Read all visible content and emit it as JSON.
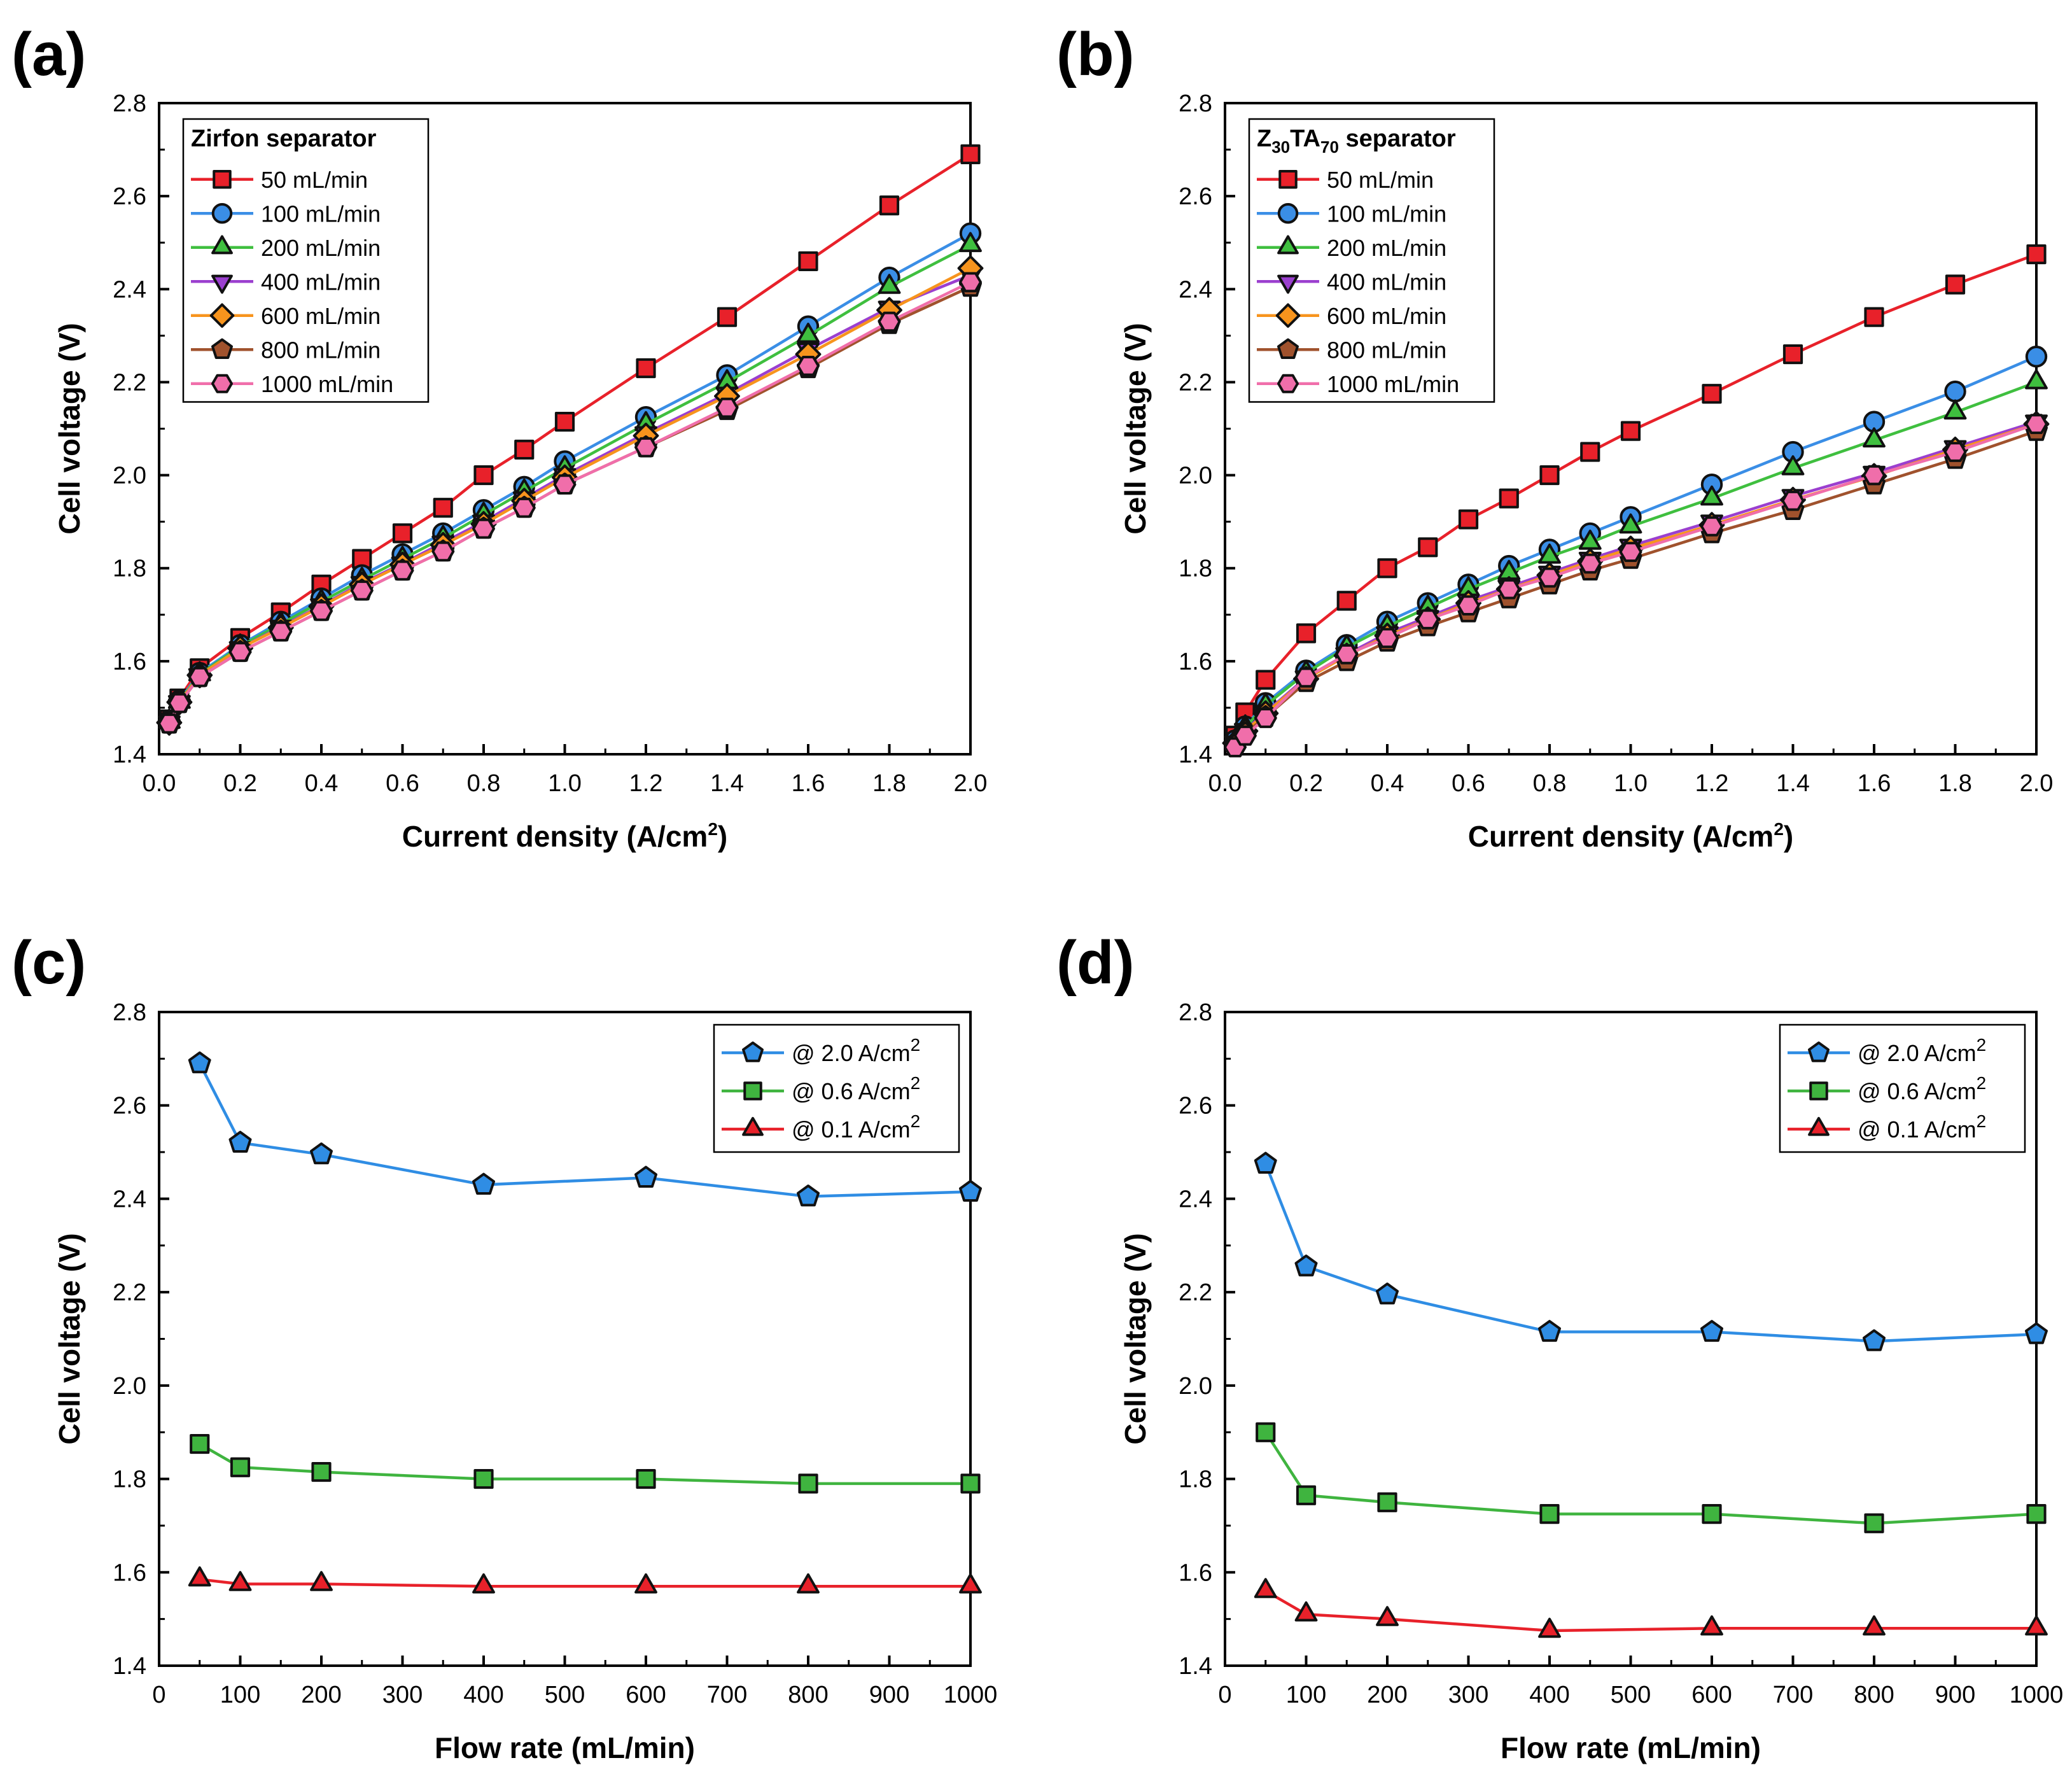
{
  "chart_data": [
    {
      "panel": "(a)",
      "type": "line",
      "xlabel": "Current density (A/cm",
      "xlabel_sup": "2",
      "xlabel_end": ")",
      "ylabel": "Cell voltage (V)",
      "xlim": [
        0,
        2.0
      ],
      "ylim": [
        1.4,
        2.8
      ],
      "xticks": [
        0.0,
        0.2,
        0.4,
        0.6,
        0.8,
        1.0,
        1.2,
        1.4,
        1.6,
        1.8,
        2.0
      ],
      "xtick_labels": [
        "0.0",
        "0.2",
        "0.4",
        "0.6",
        "0.8",
        "1.0",
        "1.2",
        "1.4",
        "1.6",
        "1.8",
        "2.0"
      ],
      "yticks": [
        1.4,
        1.6,
        1.8,
        2.0,
        2.2,
        2.4,
        2.6,
        2.8
      ],
      "ytick_labels": [
        "1.4",
        "1.6",
        "1.8",
        "2.0",
        "2.2",
        "2.4",
        "2.6",
        "2.8"
      ],
      "legend_title": "Zirfon separator",
      "legend_position": "top-left",
      "x": [
        0.025,
        0.05,
        0.1,
        0.2,
        0.3,
        0.4,
        0.5,
        0.6,
        0.7,
        0.8,
        0.9,
        1.0,
        1.2,
        1.4,
        1.6,
        1.8,
        2.0
      ],
      "series": [
        {
          "name": "50 mL/min",
          "color": "#e8212a",
          "marker": "square",
          "values": [
            1.475,
            1.52,
            1.585,
            1.65,
            1.705,
            1.765,
            1.82,
            1.875,
            1.93,
            2.0,
            2.055,
            2.115,
            2.23,
            2.34,
            2.46,
            2.58,
            2.69
          ]
        },
        {
          "name": "100 mL/min",
          "color": "#3a8ee6",
          "marker": "circle",
          "values": [
            1.472,
            1.515,
            1.575,
            1.635,
            1.685,
            1.735,
            1.785,
            1.83,
            1.875,
            1.925,
            1.975,
            2.03,
            2.125,
            2.215,
            2.32,
            2.425,
            2.52
          ]
        },
        {
          "name": "200 mL/min",
          "color": "#3fbf3f",
          "marker": "triangle-up",
          "values": [
            1.47,
            1.513,
            1.572,
            1.632,
            1.68,
            1.728,
            1.775,
            1.82,
            1.865,
            1.915,
            1.965,
            2.015,
            2.11,
            2.2,
            2.3,
            2.405,
            2.495
          ]
        },
        {
          "name": "400 mL/min",
          "color": "#9b3fcf",
          "marker": "triangle-down",
          "values": [
            1.468,
            1.512,
            1.57,
            1.628,
            1.674,
            1.72,
            1.768,
            1.81,
            1.855,
            1.9,
            1.95,
            2.0,
            2.09,
            2.175,
            2.27,
            2.36,
            2.43
          ]
        },
        {
          "name": "600 mL/min",
          "color": "#f7941d",
          "marker": "diamond",
          "values": [
            1.468,
            1.512,
            1.57,
            1.628,
            1.672,
            1.718,
            1.765,
            1.808,
            1.85,
            1.895,
            1.945,
            1.995,
            2.085,
            2.17,
            2.26,
            2.355,
            2.445
          ]
        },
        {
          "name": "800 mL/min",
          "color": "#a0522d",
          "marker": "pentagon",
          "values": [
            1.466,
            1.51,
            1.566,
            1.62,
            1.664,
            1.708,
            1.752,
            1.795,
            1.836,
            1.885,
            1.93,
            1.98,
            2.06,
            2.14,
            2.23,
            2.325,
            2.405
          ]
        },
        {
          "name": "1000 mL/min",
          "color": "#f06eaa",
          "marker": "hexagon",
          "values": [
            1.466,
            1.51,
            1.566,
            1.62,
            1.664,
            1.708,
            1.752,
            1.795,
            1.836,
            1.885,
            1.93,
            1.98,
            2.06,
            2.145,
            2.235,
            2.33,
            2.415
          ]
        }
      ]
    },
    {
      "panel": "(b)",
      "type": "line",
      "xlabel": "Current density (A/cm",
      "xlabel_sup": "2",
      "xlabel_end": ")",
      "ylabel": "Cell voltage (V)",
      "xlim": [
        0,
        2.0
      ],
      "ylim": [
        1.4,
        2.8
      ],
      "xticks": [
        0.0,
        0.2,
        0.4,
        0.6,
        0.8,
        1.0,
        1.2,
        1.4,
        1.6,
        1.8,
        2.0
      ],
      "xtick_labels": [
        "0.0",
        "0.2",
        "0.4",
        "0.6",
        "0.8",
        "1.0",
        "1.2",
        "1.4",
        "1.6",
        "1.8",
        "2.0"
      ],
      "yticks": [
        1.4,
        1.6,
        1.8,
        2.0,
        2.2,
        2.4,
        2.6,
        2.8
      ],
      "ytick_labels": [
        "1.4",
        "1.6",
        "1.8",
        "2.0",
        "2.2",
        "2.4",
        "2.6",
        "2.8"
      ],
      "legend_title_parts": [
        "Z",
        "30",
        "TA",
        "70",
        " separator"
      ],
      "legend_position": "top-left",
      "x": [
        0.025,
        0.05,
        0.1,
        0.2,
        0.3,
        0.4,
        0.5,
        0.6,
        0.7,
        0.8,
        0.9,
        1.0,
        1.2,
        1.4,
        1.6,
        1.8,
        2.0
      ],
      "series": [
        {
          "name": "50 mL/min",
          "color": "#e8212a",
          "marker": "square",
          "values": [
            1.44,
            1.49,
            1.56,
            1.66,
            1.73,
            1.8,
            1.845,
            1.905,
            1.95,
            2.0,
            2.05,
            2.095,
            2.175,
            2.26,
            2.34,
            2.41,
            2.475
          ]
        },
        {
          "name": "100 mL/min",
          "color": "#3a8ee6",
          "marker": "circle",
          "values": [
            1.43,
            1.46,
            1.51,
            1.58,
            1.635,
            1.685,
            1.725,
            1.765,
            1.805,
            1.84,
            1.875,
            1.91,
            1.98,
            2.05,
            2.115,
            2.18,
            2.255
          ]
        },
        {
          "name": "200 mL/min",
          "color": "#3fbf3f",
          "marker": "triangle-up",
          "values": [
            1.428,
            1.458,
            1.505,
            1.575,
            1.63,
            1.675,
            1.715,
            1.755,
            1.79,
            1.825,
            1.855,
            1.89,
            1.95,
            2.015,
            2.075,
            2.135,
            2.2
          ]
        },
        {
          "name": "400 mL/min",
          "color": "#9b3fcf",
          "marker": "triangle-down",
          "values": [
            1.425,
            1.452,
            1.49,
            1.565,
            1.615,
            1.66,
            1.695,
            1.73,
            1.76,
            1.79,
            1.82,
            1.848,
            1.9,
            1.955,
            2.005,
            2.06,
            2.115
          ]
        },
        {
          "name": "600 mL/min",
          "color": "#f7941d",
          "marker": "diamond",
          "values": [
            1.424,
            1.45,
            1.488,
            1.562,
            1.612,
            1.655,
            1.69,
            1.725,
            1.755,
            1.785,
            1.815,
            1.842,
            1.893,
            1.947,
            1.998,
            2.055,
            2.11
          ]
        },
        {
          "name": "800 mL/min",
          "color": "#a0522d",
          "marker": "pentagon",
          "values": [
            1.42,
            1.445,
            1.48,
            1.555,
            1.6,
            1.642,
            1.675,
            1.705,
            1.735,
            1.765,
            1.795,
            1.82,
            1.875,
            1.925,
            1.98,
            2.035,
            2.095
          ]
        },
        {
          "name": "1000 mL/min",
          "color": "#f06eaa",
          "marker": "hexagon",
          "values": [
            1.415,
            1.44,
            1.478,
            1.565,
            1.615,
            1.65,
            1.69,
            1.72,
            1.755,
            1.78,
            1.81,
            1.835,
            1.89,
            1.945,
            2.0,
            2.05,
            2.11
          ]
        }
      ]
    },
    {
      "panel": "(c)",
      "type": "line",
      "xlabel": "Flow rate (mL/min)",
      "ylabel": "Cell voltage (V)",
      "xlim": [
        0,
        1000
      ],
      "ylim": [
        1.4,
        2.8
      ],
      "xticks": [
        0,
        100,
        200,
        300,
        400,
        500,
        600,
        700,
        800,
        900,
        1000
      ],
      "xtick_labels": [
        "0",
        "100",
        "200",
        "300",
        "400",
        "500",
        "600",
        "700",
        "800",
        "900",
        "1000"
      ],
      "yticks": [
        1.4,
        1.6,
        1.8,
        2.0,
        2.2,
        2.4,
        2.6,
        2.8
      ],
      "ytick_labels": [
        "1.4",
        "1.6",
        "1.8",
        "2.0",
        "2.2",
        "2.4",
        "2.6",
        "2.8"
      ],
      "legend_position": "top-right",
      "x": [
        50,
        100,
        200,
        400,
        600,
        800,
        1000
      ],
      "series": [
        {
          "name": "@ 2.0 A/cm",
          "name_sup": "2",
          "color": "#2f8de4",
          "marker": "pentagon",
          "values": [
            2.69,
            2.52,
            2.495,
            2.43,
            2.445,
            2.405,
            2.415
          ]
        },
        {
          "name": "@ 0.6 A/cm",
          "name_sup": "2",
          "color": "#3fb43f",
          "marker": "square",
          "values": [
            1.875,
            1.825,
            1.815,
            1.8,
            1.8,
            1.79,
            1.79
          ]
        },
        {
          "name": "@ 0.1 A/cm",
          "name_sup": "2",
          "color": "#e8212a",
          "marker": "triangle-up",
          "values": [
            1.585,
            1.575,
            1.575,
            1.57,
            1.57,
            1.57,
            1.57
          ]
        }
      ]
    },
    {
      "panel": "(d)",
      "type": "line",
      "xlabel": "Flow rate (mL/min)",
      "ylabel": "Cell voltage (V)",
      "xlim": [
        0,
        1000
      ],
      "ylim": [
        1.4,
        2.8
      ],
      "xticks": [
        0,
        100,
        200,
        300,
        400,
        500,
        600,
        700,
        800,
        900,
        1000
      ],
      "xtick_labels": [
        "0",
        "100",
        "200",
        "300",
        "400",
        "500",
        "600",
        "700",
        "800",
        "900",
        "1000"
      ],
      "yticks": [
        1.4,
        1.6,
        1.8,
        2.0,
        2.2,
        2.4,
        2.6,
        2.8
      ],
      "ytick_labels": [
        "1.4",
        "1.6",
        "1.8",
        "2.0",
        "2.2",
        "2.4",
        "2.6",
        "2.8"
      ],
      "legend_position": "top-right",
      "x": [
        50,
        100,
        200,
        400,
        600,
        800,
        1000
      ],
      "series": [
        {
          "name": "@ 2.0 A/cm",
          "name_sup": "2",
          "color": "#2f8de4",
          "marker": "pentagon",
          "values": [
            2.475,
            2.255,
            2.195,
            2.115,
            2.115,
            2.095,
            2.11
          ]
        },
        {
          "name": "@ 0.6 A/cm",
          "name_sup": "2",
          "color": "#3fb43f",
          "marker": "square",
          "values": [
            1.9,
            1.765,
            1.75,
            1.725,
            1.725,
            1.705,
            1.725
          ]
        },
        {
          "name": "@ 0.1 A/cm",
          "name_sup": "2",
          "color": "#e8212a",
          "marker": "triangle-up",
          "values": [
            1.56,
            1.51,
            1.5,
            1.475,
            1.48,
            1.48,
            1.48
          ]
        }
      ]
    }
  ]
}
